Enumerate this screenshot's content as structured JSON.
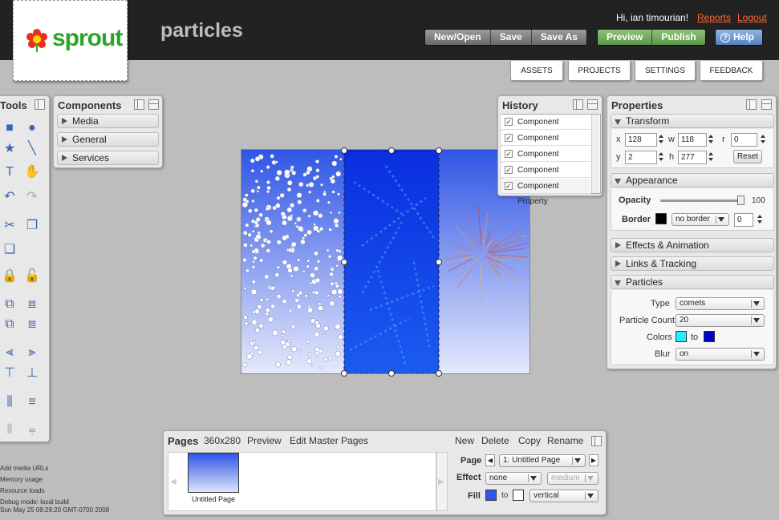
{
  "header": {
    "logo_text": "sprout",
    "app_title": "particles",
    "greeting": "Hi, ian timourian!",
    "reports_link": "Reports",
    "logout_link": "Logout",
    "file_buttons": [
      "New/Open",
      "Save",
      "Save As"
    ],
    "publish_buttons": [
      "Preview",
      "Publish"
    ],
    "help_button": "Help"
  },
  "nav_tabs": [
    "ASSETS",
    "PROJECTS",
    "SETTINGS",
    "FEEDBACK"
  ],
  "tools_panel": {
    "title": "Tools",
    "icons": [
      "rectangle-icon",
      "ellipse-icon",
      "star-icon",
      "line-icon",
      "text-icon",
      "hand-icon",
      "undo-icon",
      "redo-icon",
      "cut-icon",
      "copy-icon",
      "paste-icon",
      "lock-icon",
      "unlock-icon",
      "group-icon",
      "ungroup-icon",
      "bring-front-icon",
      "send-back-icon",
      "align-left-icon",
      "align-right-icon",
      "align-top-icon",
      "align-bottom-icon",
      "distribute-h-icon",
      "distribute-v-icon",
      "space-h-icon",
      "space-v-icon"
    ]
  },
  "components_panel": {
    "title": "Components",
    "sections": [
      "Media",
      "General",
      "Services"
    ]
  },
  "history_panel": {
    "title": "History",
    "items": [
      "Component Property",
      "Component Property",
      "Component Property",
      "Component Property",
      "Component Property"
    ]
  },
  "properties_panel": {
    "title": "Properties",
    "transform": {
      "title": "Transform",
      "x_label": "x",
      "x": "128",
      "w_label": "w",
      "w": "118",
      "r_label": "r",
      "r": "0",
      "y_label": "y",
      "y": "2",
      "h_label": "h",
      "h": "277",
      "reset": "Reset"
    },
    "appearance": {
      "title": "Appearance",
      "opacity_label": "Opacity",
      "opacity_value": "100",
      "border_label": "Border",
      "border_color": "#000000",
      "border_style": "no border",
      "border_width": "0"
    },
    "collapsed_sections": [
      "Effects & Animation",
      "Links & Tracking"
    ],
    "particles": {
      "title": "Particles",
      "type_label": "Type",
      "type": "comets",
      "count_label": "Particle Count",
      "count": "20",
      "colors_label": "Colors",
      "color_from": "#22eeff",
      "to_label": "to",
      "color_to": "#0000cc",
      "blur_label": "Blur",
      "blur": "on"
    }
  },
  "pages_panel": {
    "title": "Pages",
    "size": "360x280",
    "preview_link": "Preview",
    "edit_master_link": "Edit Master Pages",
    "actions": [
      "New",
      "Delete",
      "Copy",
      "Rename"
    ],
    "thumbnail_label": "Untitled Page",
    "page_label": "Page",
    "page_value": "1: Untitled Page",
    "effect_label": "Effect",
    "effect_value": "none",
    "effect_speed": "medium",
    "fill_label": "Fill",
    "fill_to": "to",
    "fill_color": "#3355ee",
    "fill_type": "vertical"
  },
  "debug_lines": [
    "Add media URLs",
    "Memory usage",
    "Resource loads",
    "Debug mode: local build",
    "Sun May 25 09:29:20 GMT-0700 2008"
  ]
}
